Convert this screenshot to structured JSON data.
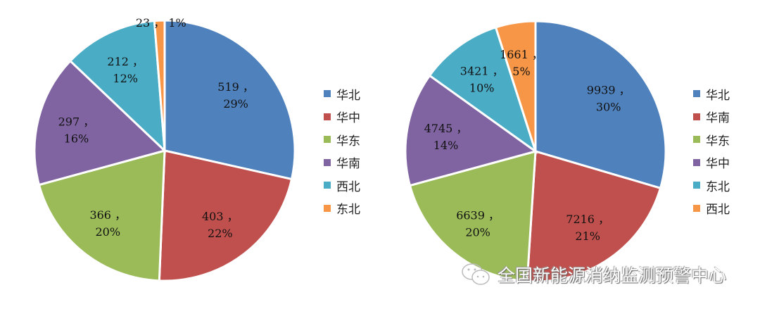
{
  "chart_data": [
    {
      "type": "pie",
      "categories": [
        "华北",
        "华中",
        "华东",
        "华南",
        "西北",
        "东北"
      ],
      "values": [
        519,
        403,
        366,
        297,
        212,
        23
      ],
      "percent_labels": [
        "29%",
        "22%",
        "20%",
        "16%",
        "12%",
        "1%"
      ],
      "colors": [
        "#4F81BD",
        "#C0504D",
        "#9BBB59",
        "#8064A2",
        "#4BACC6",
        "#F79646"
      ],
      "legend_placement": "right"
    },
    {
      "type": "pie",
      "categories": [
        "华北",
        "华南",
        "华东",
        "华中",
        "东北",
        "西北"
      ],
      "values": [
        9939,
        7216,
        6639,
        4745,
        3421,
        1661
      ],
      "percent_labels": [
        "30%",
        "21%",
        "20%",
        "14%",
        "10%",
        "5%"
      ],
      "colors": [
        "#4F81BD",
        "#C0504D",
        "#9BBB59",
        "#8064A2",
        "#4BACC6",
        "#F79646"
      ],
      "legend_placement": "right"
    }
  ],
  "watermark": "全国新能源消纳监测预警中心",
  "watermark_icon": "wechat-icon"
}
